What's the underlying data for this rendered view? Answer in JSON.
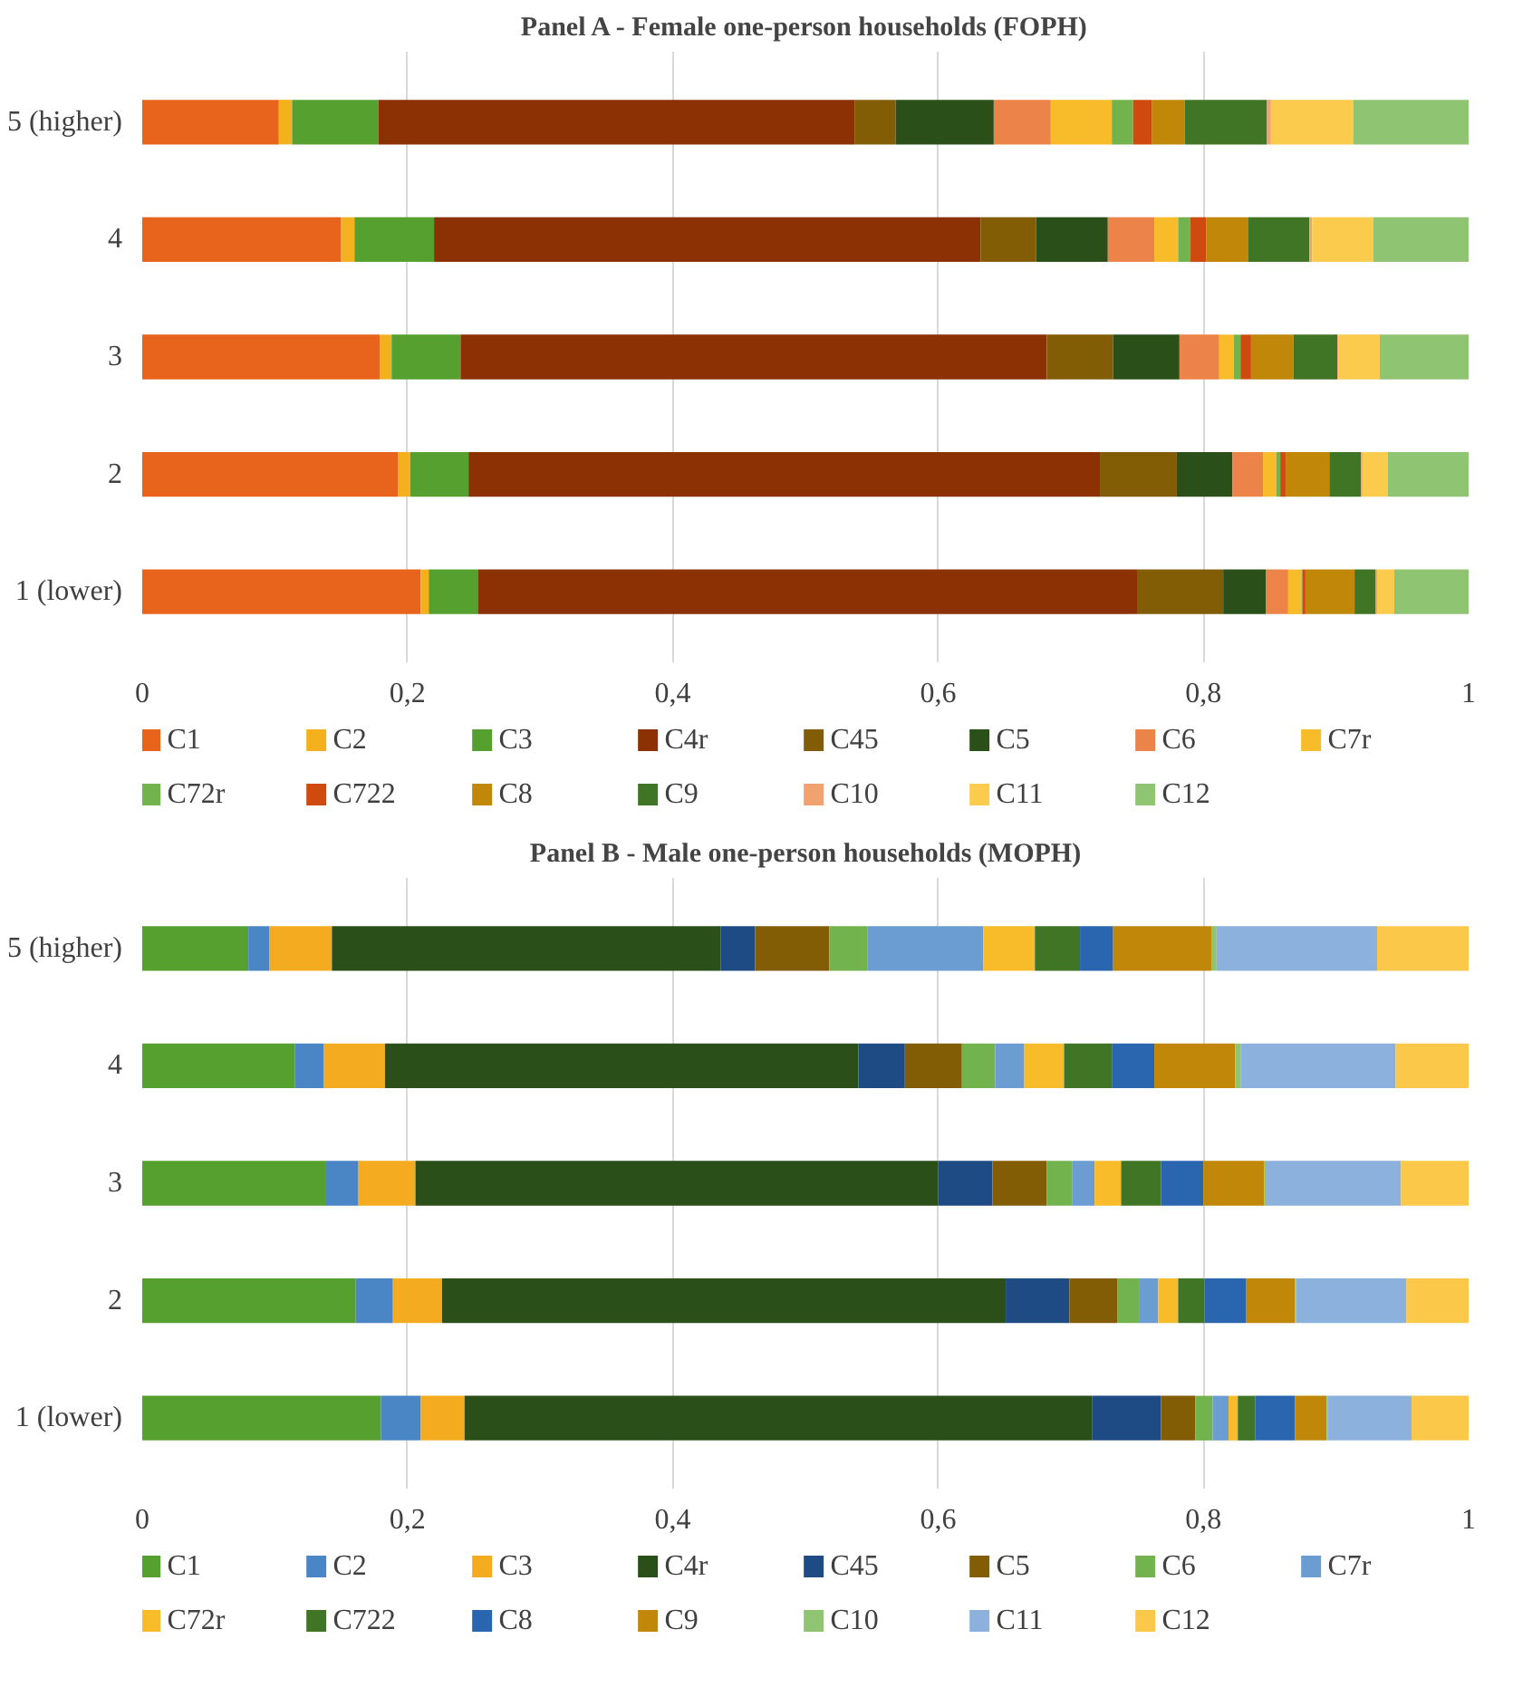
{
  "chart_data": [
    {
      "type": "bar",
      "orientation": "horizontal",
      "stacked": true,
      "title": "Panel A - Female one-person households (FOPH)",
      "categories": [
        "5 (higher)",
        "4",
        "3",
        "2",
        "1 (lower)"
      ],
      "xlim": [
        0,
        1
      ],
      "xticks": [
        0,
        {
          "value": 0.2,
          "label": "0,2"
        },
        {
          "value": 0.4,
          "label": "0,4"
        },
        {
          "value": 0.6,
          "label": "0,6"
        },
        {
          "value": 0.8,
          "label": "0,8"
        },
        1
      ],
      "grid": "x",
      "legend": "bottom",
      "series": [
        {
          "name": "C1",
          "color": "#e8641c",
          "values": [
            0.103,
            0.15,
            0.179,
            0.193,
            0.21
          ]
        },
        {
          "name": "C2",
          "color": "#f5b01e",
          "values": [
            0.01,
            0.01,
            0.009,
            0.009,
            0.006
          ]
        },
        {
          "name": "C3",
          "color": "#56a030",
          "values": [
            0.065,
            0.06,
            0.052,
            0.044,
            0.037
          ]
        },
        {
          "name": "C4r",
          "color": "#8b3103",
          "values": [
            0.359,
            0.412,
            0.442,
            0.476,
            0.497
          ]
        },
        {
          "name": "C45",
          "color": "#835c06",
          "values": [
            0.031,
            0.042,
            0.05,
            0.058,
            0.065
          ]
        },
        {
          "name": "C5",
          "color": "#2a4f18",
          "values": [
            0.074,
            0.054,
            0.05,
            0.042,
            0.032
          ]
        },
        {
          "name": "C6",
          "color": "#ec8349",
          "values": [
            0.043,
            0.035,
            0.03,
            0.023,
            0.017
          ]
        },
        {
          "name": "C7r",
          "color": "#f8bb2a",
          "values": [
            0.046,
            0.018,
            0.011,
            0.01,
            0.01
          ]
        },
        {
          "name": "C72r",
          "color": "#72b34e",
          "values": [
            0.016,
            0.009,
            0.005,
            0.003,
            0.001
          ]
        },
        {
          "name": "C722",
          "color": "#cf4a0f",
          "values": [
            0.014,
            0.012,
            0.008,
            0.004,
            0.002
          ]
        },
        {
          "name": "C8",
          "color": "#c08708",
          "values": [
            0.025,
            0.032,
            0.032,
            0.033,
            0.037
          ]
        },
        {
          "name": "C9",
          "color": "#3f7524",
          "values": [
            0.062,
            0.046,
            0.033,
            0.024,
            0.016
          ]
        },
        {
          "name": "C10",
          "color": "#f2a171",
          "values": [
            0.003,
            0.002,
            0.001,
            0.001,
            0.001
          ]
        },
        {
          "name": "C11",
          "color": "#fbcb4d",
          "values": [
            0.062,
            0.046,
            0.031,
            0.019,
            0.013
          ]
        },
        {
          "name": "C12",
          "color": "#8fc473",
          "values": [
            0.087,
            0.072,
            0.067,
            0.061,
            0.056
          ]
        }
      ]
    },
    {
      "type": "bar",
      "orientation": "horizontal",
      "stacked": true,
      "title": "Panel B - Male one-person households (MOPH)",
      "categories": [
        "5 (higher)",
        "4",
        "3",
        "2",
        "1 (lower)"
      ],
      "xlim": [
        0,
        1
      ],
      "xticks": [
        0,
        {
          "value": 0.2,
          "label": "0,2"
        },
        {
          "value": 0.4,
          "label": "0,4"
        },
        {
          "value": 0.6,
          "label": "0,6"
        },
        {
          "value": 0.8,
          "label": "0,8"
        },
        1
      ],
      "grid": "x",
      "legend": "bottom",
      "series": [
        {
          "name": "C1",
          "color": "#56a030",
          "values": [
            0.08,
            0.115,
            0.138,
            0.161,
            0.18
          ]
        },
        {
          "name": "C2",
          "color": "#4a86c5",
          "values": [
            0.016,
            0.022,
            0.025,
            0.028,
            0.03
          ]
        },
        {
          "name": "C3",
          "color": "#f5ab1f",
          "values": [
            0.047,
            0.046,
            0.043,
            0.037,
            0.033
          ]
        },
        {
          "name": "C4r",
          "color": "#2a4f18",
          "values": [
            0.293,
            0.357,
            0.394,
            0.425,
            0.473
          ]
        },
        {
          "name": "C45",
          "color": "#1f4b85",
          "values": [
            0.026,
            0.035,
            0.041,
            0.048,
            0.052
          ]
        },
        {
          "name": "C5",
          "color": "#835c06",
          "values": [
            0.056,
            0.043,
            0.041,
            0.036,
            0.026
          ]
        },
        {
          "name": "C6",
          "color": "#72b34e",
          "values": [
            0.029,
            0.025,
            0.019,
            0.017,
            0.013
          ]
        },
        {
          "name": "C7r",
          "color": "#6b9cd2",
          "values": [
            0.087,
            0.022,
            0.017,
            0.014,
            0.012
          ]
        },
        {
          "name": "C72r",
          "color": "#f8bb2a",
          "values": [
            0.039,
            0.03,
            0.02,
            0.015,
            0.007
          ]
        },
        {
          "name": "C722",
          "color": "#3f7524",
          "values": [
            0.034,
            0.036,
            0.03,
            0.02,
            0.013
          ]
        },
        {
          "name": "C8",
          "color": "#2a66b0",
          "values": [
            0.025,
            0.032,
            0.032,
            0.031,
            0.03
          ]
        },
        {
          "name": "C9",
          "color": "#c08708",
          "values": [
            0.074,
            0.061,
            0.046,
            0.037,
            0.024
          ]
        },
        {
          "name": "C10",
          "color": "#8fc473",
          "values": [
            0.004,
            0.004,
            0.001,
            0.001,
            0.001
          ]
        },
        {
          "name": "C11",
          "color": "#8cb1dc",
          "values": [
            0.121,
            0.117,
            0.102,
            0.083,
            0.063
          ]
        },
        {
          "name": "C12",
          "color": "#fbc84a",
          "values": [
            0.069,
            0.055,
            0.051,
            0.047,
            0.043
          ]
        }
      ]
    }
  ]
}
